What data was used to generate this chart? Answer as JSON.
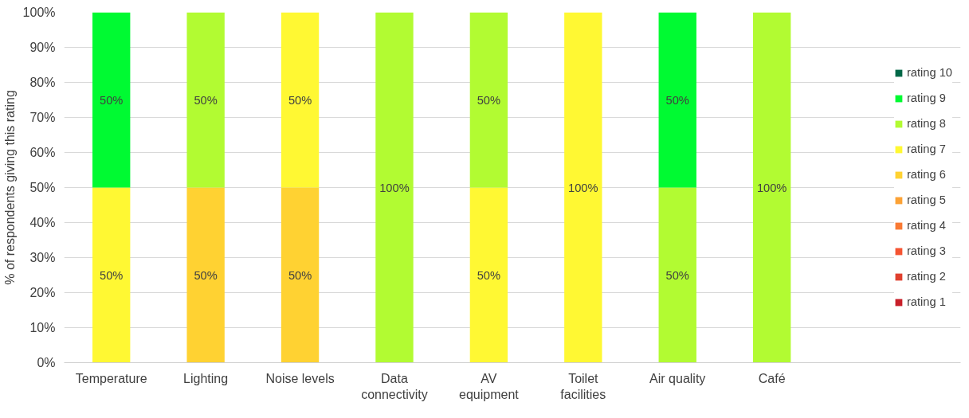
{
  "chart_data": {
    "type": "bar",
    "stacked": true,
    "ylabel": "% of respondents giving this rating",
    "categories": [
      "Temperature",
      "Lighting",
      "Noise levels",
      "Data\nconnectivity",
      "AV\nequipment",
      "Toilet\nfacilities",
      "Air quality",
      "Café"
    ],
    "ylim": [
      0,
      100
    ],
    "yticks": [
      {
        "value": 0,
        "label": "0%"
      },
      {
        "value": 10,
        "label": "10%"
      },
      {
        "value": 20,
        "label": "20%"
      },
      {
        "value": 30,
        "label": "30%"
      },
      {
        "value": 40,
        "label": "40%"
      },
      {
        "value": 50,
        "label": "50%"
      },
      {
        "value": 60,
        "label": "60%"
      },
      {
        "value": 70,
        "label": "70%"
      },
      {
        "value": 80,
        "label": "80%"
      },
      {
        "value": 90,
        "label": "90%"
      },
      {
        "value": 100,
        "label": "100%"
      }
    ],
    "grid": "y",
    "legend": "right",
    "series": [
      {
        "name": "rating 1",
        "color": "#c8202a",
        "values": [
          null,
          null,
          null,
          null,
          null,
          null,
          null,
          null
        ]
      },
      {
        "name": "rating 2",
        "color": "#e0402e",
        "values": [
          null,
          null,
          null,
          null,
          null,
          null,
          null,
          null
        ]
      },
      {
        "name": "rating 3",
        "color": "#f55432",
        "values": [
          null,
          null,
          null,
          null,
          null,
          null,
          null,
          null
        ]
      },
      {
        "name": "rating 4",
        "color": "#f97a34",
        "values": [
          null,
          null,
          null,
          null,
          null,
          null,
          null,
          null
        ]
      },
      {
        "name": "rating 5",
        "color": "#fca235",
        "values": [
          null,
          null,
          null,
          null,
          null,
          null,
          null,
          null
        ]
      },
      {
        "name": "rating 6",
        "color": "#ffd232",
        "values": [
          null,
          50,
          50,
          null,
          null,
          null,
          null,
          null
        ],
        "value_labels": [
          null,
          "50%",
          "50%",
          null,
          null,
          null,
          null,
          null
        ]
      },
      {
        "name": "rating 7",
        "color": "#fff833",
        "values": [
          50,
          null,
          50,
          null,
          50,
          100,
          null,
          null
        ],
        "value_labels": [
          "50%",
          null,
          "50%",
          null,
          "50%",
          "100%",
          null,
          null
        ]
      },
      {
        "name": "rating 8",
        "color": "#b2fb32",
        "values": [
          null,
          50,
          null,
          100,
          50,
          null,
          50,
          100
        ],
        "value_labels": [
          null,
          "50%",
          null,
          "100%",
          "50%",
          null,
          "50%",
          "100%"
        ]
      },
      {
        "name": "rating 9",
        "color": "#00fa32",
        "values": [
          50,
          null,
          null,
          null,
          null,
          null,
          50,
          null
        ],
        "value_labels": [
          "50%",
          null,
          null,
          null,
          null,
          null,
          "50%",
          null
        ]
      },
      {
        "name": "rating 10",
        "color": "#006848",
        "values": [
          null,
          null,
          null,
          null,
          null,
          null,
          null,
          null
        ]
      }
    ]
  }
}
